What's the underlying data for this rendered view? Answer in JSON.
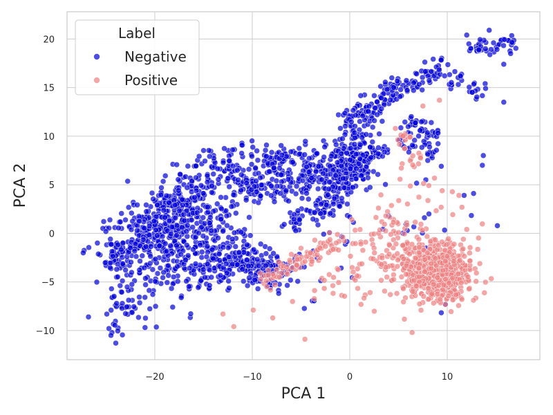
{
  "chart_data": {
    "type": "scatter",
    "title": "",
    "xlabel": "PCA 1",
    "ylabel": "PCA 2",
    "xlim": [
      -29,
      19.5
    ],
    "ylim": [
      -13,
      22.8
    ],
    "xticks": [
      -20,
      -10,
      0,
      10
    ],
    "yticks": [
      -10,
      -5,
      0,
      5,
      10,
      15,
      20
    ],
    "xtick_labels": [
      "−20",
      "−10",
      "0",
      "10"
    ],
    "ytick_labels": [
      "−10",
      "−5",
      "0",
      "5",
      "10",
      "15",
      "20"
    ],
    "grid": true,
    "legend": {
      "title": "Label",
      "position": "top-left",
      "entries": [
        {
          "label": "Negative",
          "color": "#0000dd"
        },
        {
          "label": "Positive",
          "color": "#f08080"
        }
      ]
    },
    "series": [
      {
        "name": "Negative",
        "color": "#0000dd",
        "alpha": 0.7,
        "regions": [
          {
            "type": "band",
            "x0": -25,
            "y0": -3.5,
            "x1": -13,
            "y1": 7.5,
            "width": 2.2,
            "n": 240,
            "seed": 11
          },
          {
            "type": "band",
            "x0": -13,
            "y0": 7.5,
            "x1": 1,
            "y1": 7.5,
            "width": 1.7,
            "n": 170,
            "seed": 12
          },
          {
            "type": "band",
            "x0": -12,
            "y0": 4.5,
            "x1": 2,
            "y1": 6,
            "width": 1.5,
            "n": 190,
            "seed": 13
          },
          {
            "type": "band",
            "x0": -3,
            "y0": 2.5,
            "x1": 2,
            "y1": 9,
            "width": 1.6,
            "n": 110,
            "seed": 14
          },
          {
            "type": "band",
            "x0": 0,
            "y0": 7,
            "x1": 4,
            "y1": 8.5,
            "width": 0.8,
            "n": 40,
            "seed": 15
          },
          {
            "type": "band",
            "x0": -1,
            "y0": 11,
            "x1": 5,
            "y1": 15,
            "width": 1.2,
            "n": 90,
            "seed": 16
          },
          {
            "type": "band",
            "x0": 5,
            "y0": 15,
            "x1": 10,
            "y1": 17.5,
            "width": 1.0,
            "n": 55,
            "seed": 17
          },
          {
            "type": "band",
            "x0": 12,
            "y0": 19,
            "x1": 17,
            "y1": 19.5,
            "width": 0.9,
            "n": 45,
            "seed": 18
          },
          {
            "type": "band",
            "x0": 10.5,
            "y0": 16,
            "x1": 14,
            "y1": 14.5,
            "width": 1.0,
            "n": 25,
            "seed": 19
          },
          {
            "type": "band",
            "x0": 5.5,
            "y0": 11.5,
            "x1": 9,
            "y1": 10,
            "width": 1.0,
            "n": 40,
            "seed": 20
          },
          {
            "type": "band",
            "x0": 5,
            "y0": 9.5,
            "x1": 9,
            "y1": 8.5,
            "width": 1.0,
            "n": 30,
            "seed": 21
          },
          {
            "type": "band",
            "x0": -2,
            "y0": 8,
            "x1": 3,
            "y1": 12,
            "width": 1.5,
            "n": 60,
            "seed": 22
          },
          {
            "type": "band",
            "x0": -6,
            "y0": 1,
            "x1": -2,
            "y1": 3,
            "width": 1.2,
            "n": 45,
            "seed": 23
          },
          {
            "type": "blob",
            "cx": -19,
            "cy": -1.5,
            "sx": 5,
            "sy": 4.5,
            "n": 340,
            "seed": 24
          },
          {
            "type": "blob",
            "cx": -12,
            "cy": -3,
            "sx": 3,
            "sy": 2.2,
            "n": 140,
            "seed": 25
          },
          {
            "type": "blob",
            "cx": -8,
            "cy": -4,
            "sx": 2.5,
            "sy": 1.6,
            "n": 85,
            "seed": 26
          },
          {
            "type": "blob",
            "cx": -15,
            "cy": 1.5,
            "sx": 4,
            "sy": 3,
            "n": 130,
            "seed": 27
          },
          {
            "type": "blob",
            "cx": -23,
            "cy": -7.5,
            "sx": 2.2,
            "sy": 2.2,
            "n": 40,
            "seed": 28
          },
          {
            "type": "blob",
            "cx": 0,
            "cy": 0,
            "sx": 12,
            "sy": 7,
            "n": 55,
            "seed": 29
          }
        ],
        "points": [
          [
            -24,
            -11.3
          ],
          [
            -24.5,
            -10.5
          ],
          [
            -24.7,
            -9.8
          ],
          [
            -21,
            -9.7
          ],
          [
            -26.8,
            -8.6
          ],
          [
            14.3,
            20.9
          ],
          [
            12,
            20.4
          ],
          [
            16.5,
            18.5
          ],
          [
            15.8,
            13.5
          ],
          [
            12.7,
            4.1
          ],
          [
            13.6,
            7
          ],
          [
            13.7,
            8
          ],
          [
            15.8,
            17.4
          ]
        ]
      },
      {
        "name": "Positive",
        "color": "#f08080",
        "alpha": 0.7,
        "regions": [
          {
            "type": "blob",
            "cx": 9,
            "cy": -4,
            "sx": 2.8,
            "sy": 2.4,
            "n": 650,
            "seed": 41
          },
          {
            "type": "band",
            "x0": -9,
            "y0": -5,
            "x1": -1,
            "y1": -0.5,
            "width": 1.0,
            "n": 90,
            "seed": 42
          },
          {
            "type": "blob",
            "cx": 4.5,
            "cy": -2,
            "sx": 4.5,
            "sy": 3.5,
            "n": 110,
            "seed": 43
          },
          {
            "type": "band",
            "x0": 5,
            "y0": 11,
            "x1": 7,
            "y1": 7,
            "width": 0.8,
            "n": 25,
            "seed": 44
          },
          {
            "type": "blob",
            "cx": 7,
            "cy": 2,
            "sx": 5,
            "sy": 3.5,
            "n": 35,
            "seed": 45
          },
          {
            "type": "blob",
            "cx": 1,
            "cy": -5,
            "sx": 5,
            "sy": 2.5,
            "n": 35,
            "seed": 46
          }
        ],
        "points": [
          [
            -4.6,
            -10.9
          ],
          [
            -11.9,
            -9.6
          ],
          [
            -7.9,
            -8.7
          ],
          [
            -9.9,
            -7.9
          ],
          [
            -13,
            -8.3
          ],
          [
            9.2,
            13.7
          ],
          [
            7.5,
            13.1
          ],
          [
            12,
            0.4
          ],
          [
            11.5,
            -6.8
          ],
          [
            6.4,
            -10.2
          ]
        ]
      }
    ]
  }
}
